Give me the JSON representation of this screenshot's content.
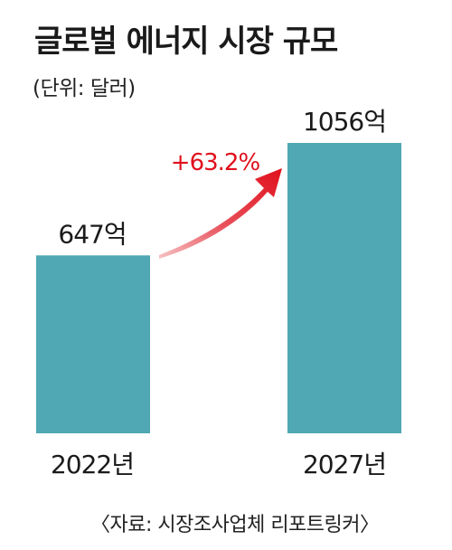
{
  "title": "글로벌 에너지 시장 규모",
  "unit_label": "(단위: 달러)",
  "growth_label": "+63.2%",
  "source": "〈자료: 시장조사업체 리포트링커〉",
  "colors": {
    "bar": "#4fa8b3",
    "arrow": "#e0101c",
    "growth_text": "#e0101c"
  },
  "chart_data": {
    "type": "bar",
    "title": "글로벌 에너지 시장 규모",
    "xlabel": "",
    "ylabel": "",
    "categories": [
      "2022년",
      "2027년"
    ],
    "values": [
      647,
      1056
    ],
    "data_labels": [
      "647억",
      "1056억"
    ],
    "annotations": [
      "+63.2%"
    ],
    "ylim": [
      0,
      1200
    ],
    "grid": false,
    "legend": "none"
  }
}
